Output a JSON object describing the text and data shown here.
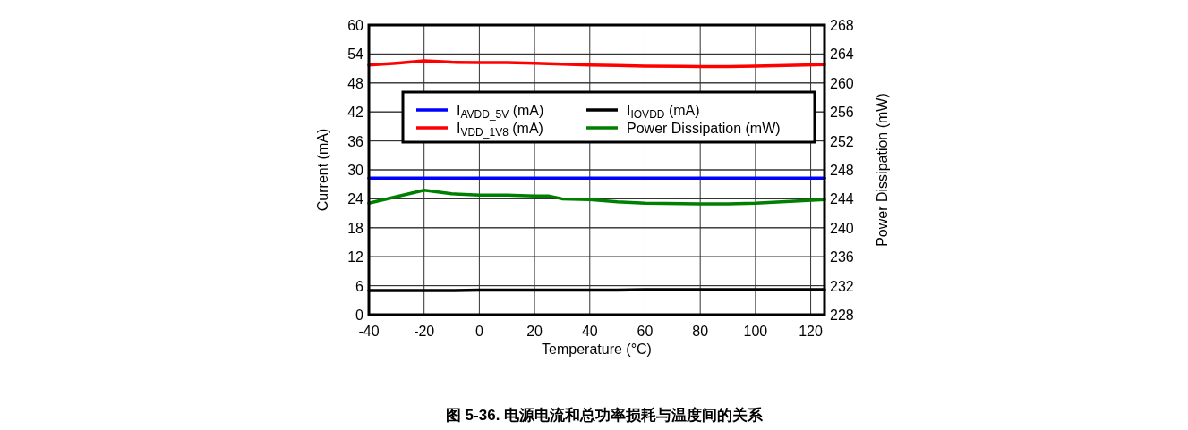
{
  "chart_data": {
    "type": "line",
    "xlabel": "Temperature (°C)",
    "ylabel": "Current (mA)",
    "y2label": "Power Dissipation (mW)",
    "annotations": [
      "图 5-36. 电源电流和总功率损耗与温度间的关系"
    ],
    "xlim": [
      -40,
      125
    ],
    "xticks": [
      -40,
      -20,
      0,
      20,
      40,
      60,
      80,
      100,
      120
    ],
    "ylim": [
      0,
      60
    ],
    "yticks": [
      0,
      6,
      12,
      18,
      24,
      30,
      36,
      42,
      48,
      54,
      60
    ],
    "y2lim": [
      228,
      268
    ],
    "y2ticks": [
      228,
      232,
      236,
      240,
      244,
      248,
      252,
      256,
      260,
      264,
      268
    ],
    "grid": true,
    "legend": "top",
    "marker": "none",
    "line_style": "solid",
    "x": [
      -40,
      -30,
      -20,
      -10,
      0,
      10,
      20,
      25,
      30,
      40,
      50,
      60,
      80,
      90,
      100,
      125
    ],
    "series": [
      {
        "name": "I$_{AVDD_5V}$ (mA)",
        "color": "#0000ff",
        "values": [
          28.3,
          28.3,
          28.3,
          28.3,
          28.3,
          28.3,
          28.3,
          28.3,
          28.3,
          28.3,
          28.3,
          28.3,
          28.3,
          28.3,
          28.3,
          28.3
        ]
      },
      {
        "name": "I$_{VDD_1V8}$ (mA)",
        "color": "#ff0000",
        "values": [
          51.7,
          52.1,
          52.6,
          52.3,
          52.2,
          52.2,
          52.1,
          52.0,
          51.9,
          51.7,
          51.6,
          51.5,
          51.4,
          51.4,
          51.5,
          51.8
        ]
      },
      {
        "name": "I$_{IOVDD}$ (mA)",
        "color": "#000000",
        "values": [
          5.0,
          5.0,
          5.0,
          5.0,
          5.1,
          5.1,
          5.1,
          5.1,
          5.1,
          5.1,
          5.1,
          5.2,
          5.2,
          5.2,
          5.2,
          5.2
        ]
      },
      {
        "name": "Power Dissipation (mW)",
        "color": "#008000",
        "axis": "y2",
        "values": [
          243.4,
          244.3,
          245.2,
          244.7,
          244.5,
          244.5,
          244.4,
          244.4,
          244.0,
          243.9,
          243.6,
          243.4,
          243.3,
          243.3,
          243.4,
          243.9
        ]
      }
    ]
  }
}
